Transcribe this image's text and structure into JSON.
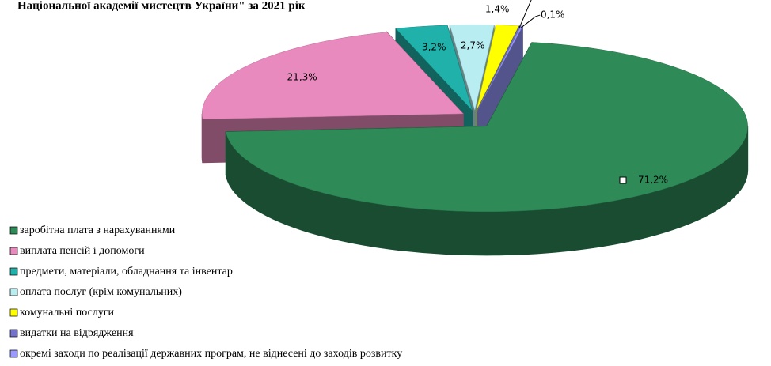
{
  "chart_data": {
    "type": "pie3d",
    "title": "Національної академії мистецтв України\" за 2021 рік",
    "categories": [
      "заробітна плата з нарахуваннями",
      "виплата пенсій і допомоги",
      "предмети, матеріали, обладнання та інвентар",
      "оплата послуг (крім комунальних)",
      "комунальні послуги",
      "видатки на відрядження",
      "окремі заходи по реалізації державних програм, не віднесені до заходів розвитку"
    ],
    "values": [
      71.2,
      21.3,
      3.2,
      2.7,
      1.4,
      0.1,
      0.1
    ],
    "value_labels": [
      "71,2%",
      "21,3%",
      "3,2%",
      "2,7%",
      "1,4%",
      "0,1%",
      "0,1%"
    ],
    "colors": [
      "#2e8b57",
      "#e88abd",
      "#20b2aa",
      "#b8eef2",
      "#ffff00",
      "#7373cc",
      "#9999ff"
    ]
  }
}
